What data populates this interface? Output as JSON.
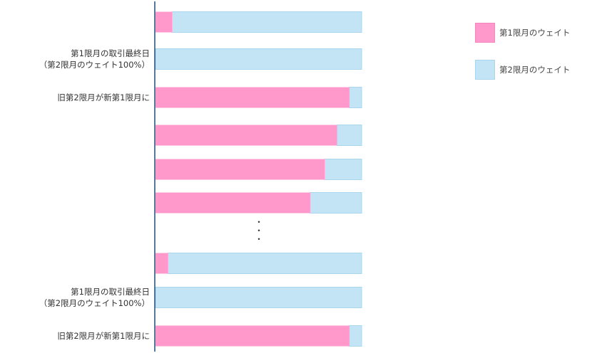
{
  "chart_data": {
    "type": "bar",
    "orientation": "horizontal",
    "stacked": true,
    "grid": false,
    "legend_position": "top-right",
    "colors": {
      "series1": "#ff99cc",
      "series1_border": "#f585be",
      "series2": "#c3e4f5",
      "series2_border": "#a9d6ee",
      "axis": "#1f4e79"
    },
    "series": [
      {
        "name": "第1限月のウェイト",
        "values": [
          8,
          0,
          94,
          88,
          82,
          75,
          6,
          0,
          94
        ]
      },
      {
        "name": "第2限月のウェイト",
        "values": [
          92,
          100,
          6,
          12,
          18,
          25,
          94,
          100,
          6
        ]
      }
    ],
    "row_labels": [
      "",
      "第1限月の取引最終日\n（第2限月のウェイト100%）",
      "旧第2限月が新第1限月に",
      "",
      "",
      "",
      "",
      "第1限月の取引最終日\n（第2限月のウェイト100%）",
      "旧第2限月が新第1限月に"
    ],
    "ellipsis": "・\n・\n・",
    "xlim": [
      0,
      100
    ]
  }
}
